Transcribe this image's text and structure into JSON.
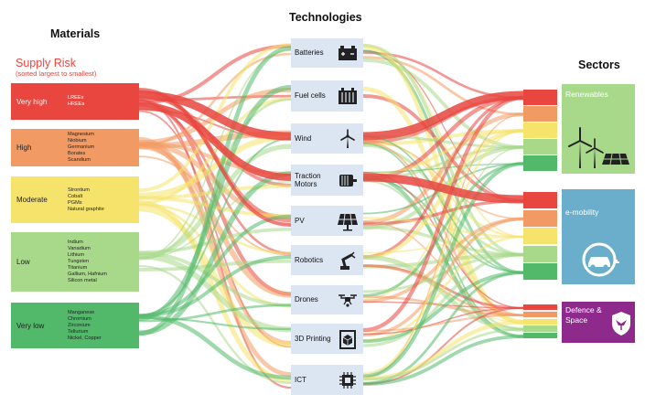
{
  "titles": {
    "materials": "Materials",
    "technologies": "Technologies",
    "sectors": "Sectors"
  },
  "supply_risk": {
    "title": "Supply Risk",
    "subtitle": "(sorted largest to smallest)",
    "levels": [
      {
        "label": "Very high",
        "color": "#e8463f",
        "materials": [
          "LREEs",
          "HREEs"
        ]
      },
      {
        "label": "High",
        "color": "#f29a63",
        "materials": [
          "Magnesium",
          "Niobium",
          "Germanium",
          "Borates",
          "Scandium"
        ]
      },
      {
        "label": "Moderate",
        "color": "#f5e36c",
        "materials": [
          "Strontium",
          "Cobalt",
          "PGMs",
          "Natural graphite"
        ]
      },
      {
        "label": "Low",
        "color": "#a8d88a",
        "materials": [
          "Indium",
          "Vanadium",
          "Lithium",
          "Tungsten",
          "Titanium",
          "Gallium, Hafnium",
          "Silicon metal"
        ]
      },
      {
        "label": "Very low",
        "color": "#52b96a",
        "materials": [
          "Manganese",
          "Chromium",
          "Zirconium",
          "Tellurium",
          "Nickel, Copper"
        ]
      }
    ]
  },
  "technologies": [
    {
      "label": "Batteries",
      "icon": "battery-icon"
    },
    {
      "label": "Fuel cells",
      "icon": "fuel-cell-icon"
    },
    {
      "label": "Wind",
      "icon": "wind-turbine-icon"
    },
    {
      "label": "Traction Motors",
      "icon": "motor-icon"
    },
    {
      "label": "PV",
      "icon": "solar-panel-icon"
    },
    {
      "label": "Robotics",
      "icon": "robot-arm-icon"
    },
    {
      "label": "Drones",
      "icon": "drone-icon"
    },
    {
      "label": "3D Printing",
      "icon": "3d-printer-icon"
    },
    {
      "label": "ICT",
      "icon": "chip-icon"
    }
  ],
  "sectors": [
    {
      "label": "Renewables",
      "color": "#a8d88a",
      "icon": "wind-solar-icon"
    },
    {
      "label": "e-mobility",
      "color": "#6aaecb",
      "icon": "electric-car-icon"
    },
    {
      "label": "Defence & Space",
      "color": "#8e2a8c",
      "icon": "shield-eagle-icon"
    }
  ],
  "colors": {
    "very_high": "#e8463f",
    "high": "#f29a63",
    "moderate": "#f5e36c",
    "low": "#a8d88a",
    "very_low": "#52b96a",
    "tech_box": "#dbe6f2"
  }
}
